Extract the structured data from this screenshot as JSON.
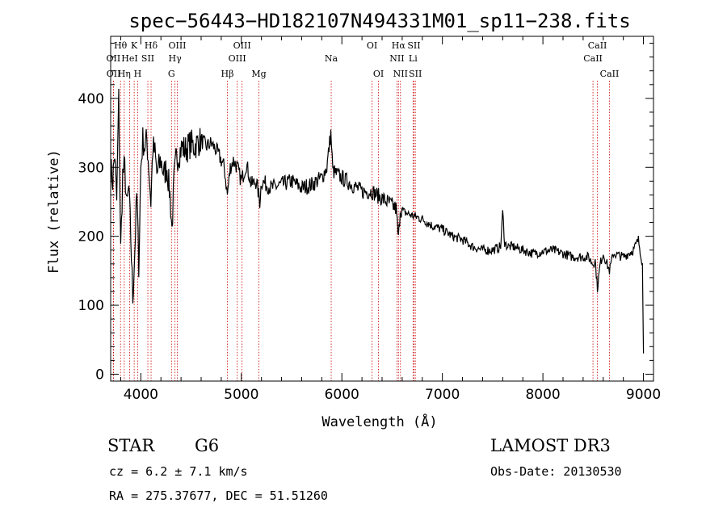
{
  "chart_data": {
    "type": "line",
    "title": "spec−56443−HD182107N494331M01_sp11−238.fits",
    "xlabel": "Wavelength (Å)",
    "ylabel": "Flux (relative)",
    "xlim": [
      3700,
      9100
    ],
    "ylim": [
      -10,
      490
    ],
    "x_ticks": [
      4000,
      5000,
      6000,
      7000,
      8000,
      9000
    ],
    "y_ticks": [
      0,
      100,
      200,
      300,
      400
    ],
    "series": [
      {
        "name": "flux",
        "x": [
          3700,
          3720,
          3740,
          3760,
          3780,
          3800,
          3820,
          3840,
          3860,
          3880,
          3900,
          3920,
          3940,
          3960,
          3980,
          4000,
          4020,
          4040,
          4060,
          4080,
          4100,
          4120,
          4140,
          4160,
          4180,
          4200,
          4230,
          4260,
          4290,
          4310,
          4330,
          4350,
          4380,
          4410,
          4440,
          4470,
          4500,
          4530,
          4560,
          4600,
          4650,
          4700,
          4750,
          4800,
          4830,
          4861,
          4890,
          4920,
          4960,
          5000,
          5050,
          5100,
          5150,
          5183,
          5200,
          5250,
          5300,
          5400,
          5500,
          5600,
          5700,
          5800,
          5850,
          5890,
          5910,
          5950,
          6000,
          6100,
          6200,
          6300,
          6400,
          6500,
          6540,
          6563,
          6580,
          6620,
          6700,
          6800,
          6900,
          7000,
          7100,
          7200,
          7300,
          7400,
          7500,
          7580,
          7600,
          7620,
          7650,
          7700,
          7800,
          7900,
          8000,
          8100,
          8200,
          8300,
          8400,
          8450,
          8498,
          8520,
          8542,
          8570,
          8600,
          8662,
          8700,
          8800,
          8900,
          8950,
          8990,
          9000
        ],
        "y": [
          300,
          280,
          320,
          250,
          400,
          180,
          290,
          300,
          240,
          270,
          200,
          110,
          180,
          260,
          160,
          300,
          340,
          330,
          340,
          300,
          250,
          330,
          320,
          290,
          300,
          310,
          290,
          300,
          260,
          210,
          280,
          310,
          320,
          330,
          325,
          330,
          335,
          330,
          335,
          340,
          330,
          335,
          325,
          310,
          300,
          260,
          300,
          310,
          300,
          280,
          305,
          275,
          280,
          250,
          280,
          275,
          270,
          275,
          280,
          270,
          275,
          285,
          300,
          350,
          295,
          290,
          285,
          275,
          265,
          265,
          255,
          245,
          240,
          195,
          240,
          235,
          230,
          225,
          215,
          210,
          200,
          195,
          185,
          180,
          180,
          185,
          235,
          190,
          185,
          185,
          180,
          175,
          178,
          180,
          175,
          170,
          170,
          170,
          160,
          165,
          125,
          160,
          175,
          150,
          175,
          170,
          180,
          195,
          160,
          30
        ]
      }
    ],
    "lines": [
      {
        "label": "Hθ",
        "wl": 3798,
        "row": 1
      },
      {
        "label": "OII",
        "wl": 3727,
        "row": 2
      },
      {
        "label": "OII",
        "wl": 3729,
        "row": 3
      },
      {
        "label": "HeI",
        "wl": 3889,
        "row": 2
      },
      {
        "label": "Hη",
        "wl": 3835,
        "row": 3
      },
      {
        "label": "K",
        "wl": 3934,
        "row": 1
      },
      {
        "label": "SII",
        "wl": 4070,
        "row": 2
      },
      {
        "label": "H",
        "wl": 3969,
        "row": 3
      },
      {
        "label": "Hδ",
        "wl": 4102,
        "row": 1
      },
      {
        "label": "OIII",
        "wl": 4363,
        "row": 1
      },
      {
        "label": "Hγ",
        "wl": 4340,
        "row": 2
      },
      {
        "label": "G",
        "wl": 4305,
        "row": 3
      },
      {
        "label": "Hβ",
        "wl": 4861,
        "row": 3
      },
      {
        "label": "OIII",
        "wl": 5007,
        "row": 1
      },
      {
        "label": "OIII",
        "wl": 4959,
        "row": 2
      },
      {
        "label": "Mg",
        "wl": 5175,
        "row": 3
      },
      {
        "label": "Na",
        "wl": 5894,
        "row": 2
      },
      {
        "label": "OI",
        "wl": 6300,
        "row": 1
      },
      {
        "label": "OI",
        "wl": 6364,
        "row": 3
      },
      {
        "label": "Hα",
        "wl": 6563,
        "row": 1
      },
      {
        "label": "SII",
        "wl": 6717,
        "row": 1
      },
      {
        "label": "NII",
        "wl": 6548,
        "row": 2
      },
      {
        "label": "Li",
        "wl": 6708,
        "row": 2
      },
      {
        "label": "NII",
        "wl": 6583,
        "row": 3
      },
      {
        "label": "SII",
        "wl": 6731,
        "row": 3
      },
      {
        "label": "CaII",
        "wl": 8542,
        "row": 1
      },
      {
        "label": "CaII",
        "wl": 8498,
        "row": 2
      },
      {
        "label": "CaII",
        "wl": 8662,
        "row": 3
      }
    ]
  },
  "info": {
    "object_class": "STAR",
    "subclass": "G6",
    "survey": "LAMOST DR3",
    "cz": "cz = 6.2 ± 7.1 km/s",
    "obs_date": "Obs-Date: 20130530",
    "radec": "RA = 275.37677, DEC =  51.51260"
  },
  "colors": {
    "spectrum": "#000000",
    "line_markers": "#cc0000",
    "background": "#ffffff"
  }
}
